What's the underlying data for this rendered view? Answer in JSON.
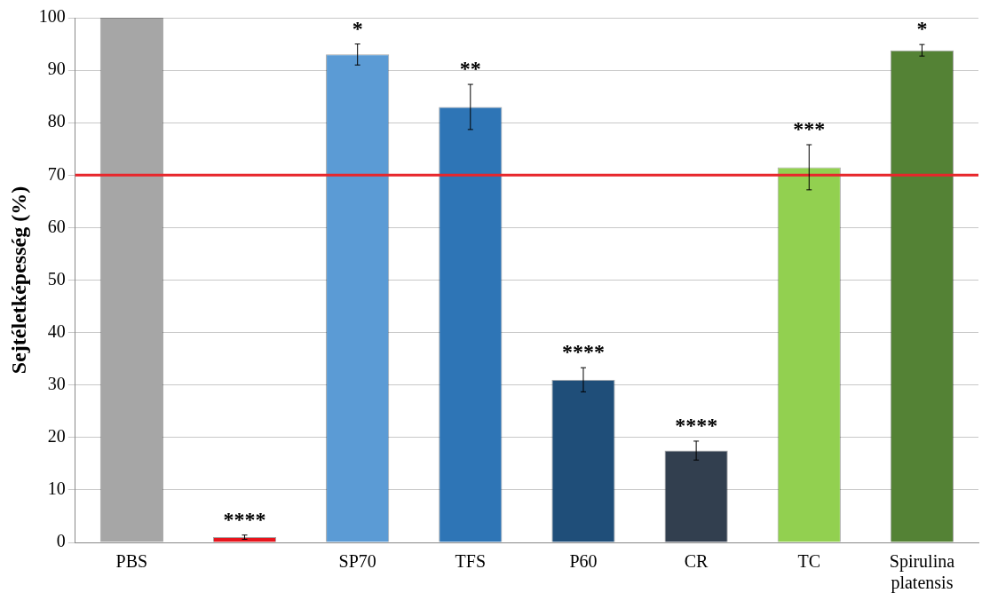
{
  "chart_data": {
    "type": "bar",
    "ylabel": "Sejtéletképesség (%)",
    "categories": [
      "PBS",
      null,
      "SP70",
      "TFS",
      "P60",
      "CR",
      "TC",
      "Spirulina platensis"
    ],
    "values": [
      100,
      1,
      93,
      83,
      31,
      17.5,
      71.5,
      93.8
    ],
    "colors": [
      "#a6a6a6",
      "#e8141c",
      "#5b9bd5",
      "#2e75b6",
      "#1f4e79",
      "#323f4f",
      "#92d050",
      "#548235"
    ],
    "errors": [
      null,
      0.4,
      2,
      4.3,
      2.3,
      1.8,
      4.3,
      1.1
    ],
    "value_labels": [
      null,
      "****",
      "*",
      "**",
      "****",
      "****",
      "***",
      "*"
    ],
    "ylim": [
      0,
      100
    ],
    "yticks": [
      0,
      10,
      20,
      30,
      40,
      50,
      60,
      70,
      80,
      90,
      100
    ],
    "ref_lines": [
      {
        "axis": "y",
        "value": 70,
        "color": "#e8262b"
      }
    ],
    "grid": "y",
    "legend": false
  }
}
